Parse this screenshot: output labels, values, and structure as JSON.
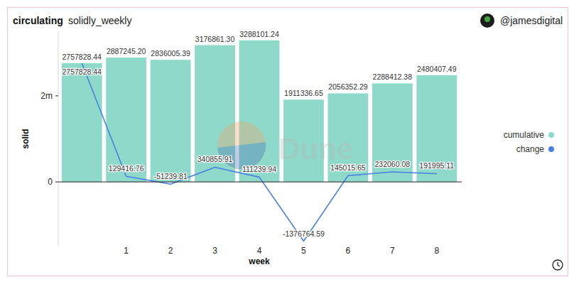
{
  "chart_data": {
    "type": "bar",
    "title": "circulating",
    "subtitle": "solidly_weekly",
    "author": "@jamesdigital",
    "watermark": "Dune",
    "x_label": "week",
    "y_label": "solid",
    "categories": [
      null,
      1,
      2,
      3,
      4,
      5,
      6,
      7,
      8
    ],
    "series": [
      {
        "name": "cumulative",
        "type": "bar",
        "color": "#8ed9c9",
        "values": [
          2757828.44,
          2887245.2,
          2836005.39,
          3176861.3,
          3288101.24,
          1911336.65,
          2056352.29,
          2288412.38,
          2480407.49
        ],
        "value_labels": [
          "2757828.44",
          "2887245.20",
          "2836005.39",
          "3176861.30",
          "3288101.24",
          "1911336.65",
          "2056352.29",
          "2288412.38",
          "2480407.49"
        ]
      },
      {
        "name": "change",
        "type": "line",
        "color": "#4a7fe3",
        "values": [
          2757828.44,
          129416.76,
          -51239.81,
          340855.91,
          111239.94,
          -1376764.59,
          145015.65,
          232060.08,
          191995.11
        ],
        "value_labels": [
          "2757828.44",
          "129416.76",
          "-51239.81",
          "340855.91",
          "111239.94",
          "-1376764.59",
          "145015.65",
          "232060.08",
          "191995.11"
        ]
      }
    ],
    "ylim": [
      -1500000,
      3500000
    ],
    "yticks": [
      0,
      {
        "value": 2000000,
        "label": "2m"
      }
    ],
    "grid": false,
    "legend": "right",
    "data_labels": true
  }
}
